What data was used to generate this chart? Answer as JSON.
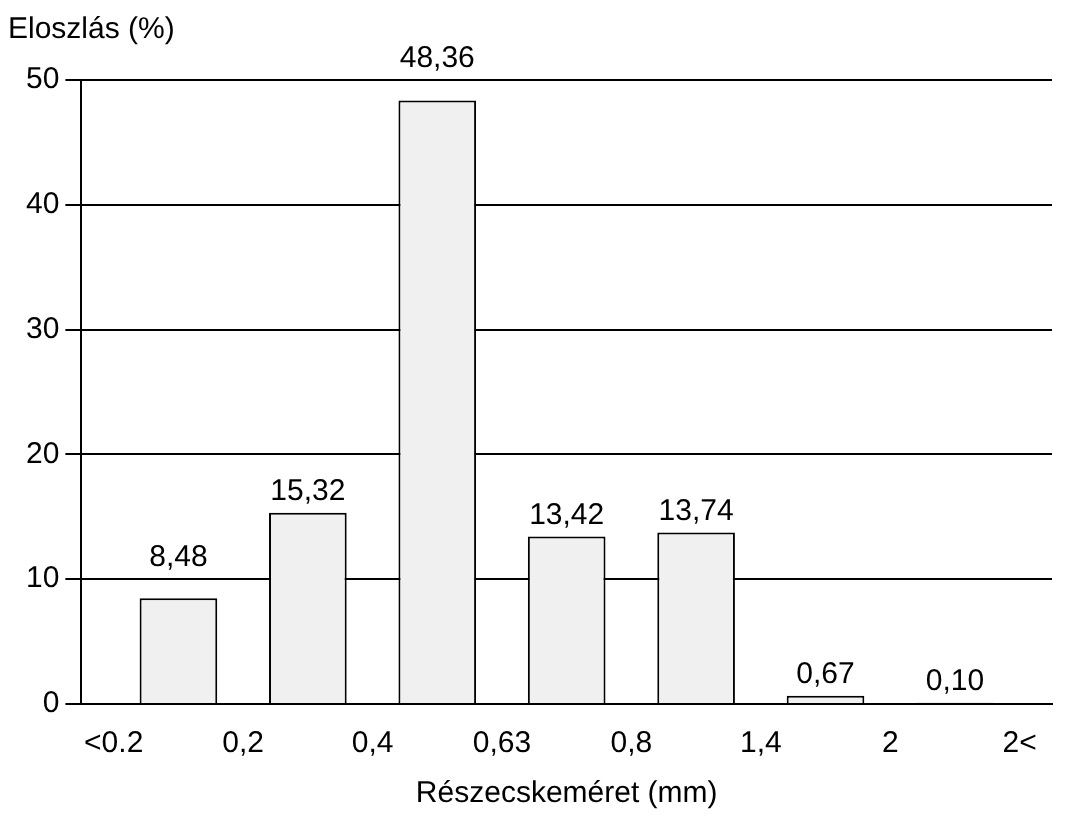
{
  "chart_data": {
    "type": "bar",
    "ylabel": "Eloszlás (%)",
    "xlabel": "Részecskeméret (mm)",
    "categories": [
      "<0.2",
      null,
      "0,2",
      null,
      "0,4",
      null,
      "0,63",
      null,
      "0,8",
      null,
      "1,4",
      null,
      "2",
      null,
      "2<"
    ],
    "values": [
      null,
      8.48,
      null,
      15.32,
      null,
      48.36,
      null,
      13.42,
      null,
      13.74,
      null,
      0.67,
      null,
      0.1,
      null
    ],
    "value_labels": [
      null,
      "8,48",
      null,
      "15,32",
      null,
      "48,36",
      null,
      "13,42",
      null,
      "13,74",
      null,
      "0,67",
      null,
      "0,10",
      null
    ],
    "color": "#f0f0f0",
    "ylim": [
      0,
      50
    ],
    "yticks": [
      0,
      10,
      20,
      30,
      40,
      50
    ],
    "grid": "y"
  }
}
